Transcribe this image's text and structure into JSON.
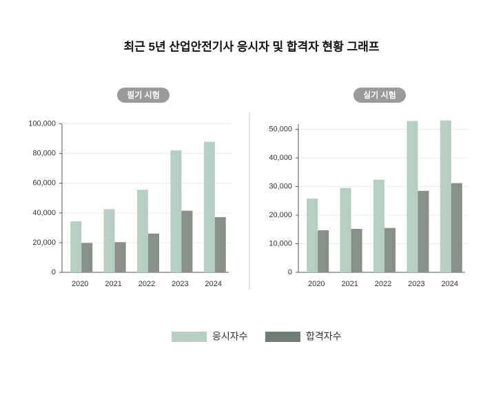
{
  "title": "최근 5년 산업안전기사 응시자 및 합격자 현황 그래프",
  "chart_data": [
    {
      "type": "bar",
      "subtitle": "필기 시험",
      "categories": [
        "2020",
        "2021",
        "2022",
        "2023",
        "2024"
      ],
      "series": [
        {
          "name": "응시자수",
          "color": "#b6cfc3",
          "values": [
            34300,
            42500,
            55600,
            82100,
            87900
          ]
        },
        {
          "name": "합격자수",
          "color": "#879188",
          "values": [
            19800,
            20300,
            26100,
            41500,
            37200
          ]
        }
      ],
      "ylim": [
        0,
        104000
      ],
      "yticks": [
        0,
        {
          "value": 20000,
          "label": "20,000"
        },
        {
          "value": 40000,
          "label": "40,000"
        },
        {
          "value": 60000,
          "label": "60,000"
        },
        {
          "value": 80000,
          "label": "80,000"
        },
        {
          "value": 100000,
          "label": "100,000"
        }
      ],
      "grid": true
    },
    {
      "type": "bar",
      "subtitle": "실기 시험",
      "categories": [
        "2020",
        "2021",
        "2022",
        "2023",
        "2024"
      ],
      "series": [
        {
          "name": "응시자수",
          "color": "#b6cfc3",
          "values": [
            25800,
            29500,
            32400,
            52900,
            53100
          ]
        },
        {
          "name": "합격자수",
          "color": "#879188",
          "values": [
            14700,
            15200,
            15500,
            28500,
            31200
          ]
        }
      ],
      "ylim": [
        0,
        54000
      ],
      "yticks": [
        0,
        {
          "value": 10000,
          "label": "10,000"
        },
        {
          "value": 20000,
          "label": "20,000"
        },
        {
          "value": 30000,
          "label": "30,000"
        },
        {
          "value": 40000,
          "label": "40,000"
        },
        {
          "value": 50000,
          "label": "50,000"
        }
      ],
      "grid": true
    }
  ]
}
